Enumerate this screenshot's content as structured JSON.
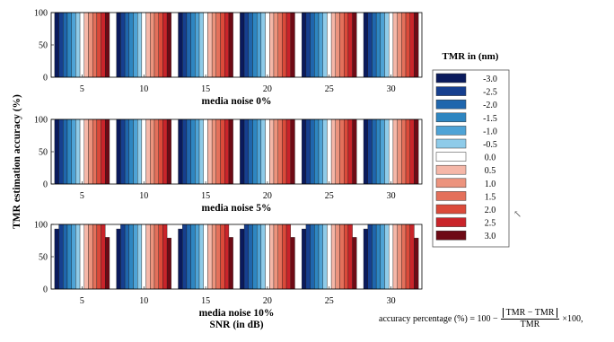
{
  "chart_data": [
    {
      "type": "bar",
      "title": "media noise 0%",
      "categories": [
        "5",
        "10",
        "15",
        "20",
        "25",
        "30"
      ],
      "series_names": [
        "-3.0",
        "-2.5",
        "-2.0",
        "-1.5",
        "-1.0",
        "-0.5",
        "0.0",
        "0.5",
        "1.0",
        "1.5",
        "2.0",
        "2.5",
        "3.0"
      ],
      "values": [
        [
          100,
          100,
          100,
          100,
          100,
          100,
          100,
          100,
          100,
          100,
          100,
          100,
          100
        ],
        [
          100,
          100,
          100,
          100,
          100,
          100,
          100,
          100,
          100,
          100,
          100,
          100,
          100
        ],
        [
          100,
          100,
          100,
          100,
          100,
          100,
          100,
          100,
          100,
          100,
          100,
          100,
          100
        ],
        [
          100,
          100,
          100,
          100,
          100,
          100,
          100,
          100,
          100,
          100,
          100,
          100,
          100
        ],
        [
          100,
          100,
          100,
          100,
          100,
          100,
          100,
          100,
          100,
          100,
          100,
          100,
          100
        ],
        [
          100,
          100,
          100,
          100,
          100,
          100,
          100,
          100,
          100,
          100,
          100,
          100,
          100
        ]
      ],
      "ylim": [
        0,
        100
      ],
      "yticks": [
        "0",
        "50",
        "100"
      ]
    },
    {
      "type": "bar",
      "title": "media noise 5%",
      "categories": [
        "5",
        "10",
        "15",
        "20",
        "25",
        "30"
      ],
      "series_names": [
        "-3.0",
        "-2.5",
        "-2.0",
        "-1.5",
        "-1.0",
        "-0.5",
        "0.0",
        "0.5",
        "1.0",
        "1.5",
        "2.0",
        "2.5",
        "3.0"
      ],
      "values": [
        [
          100,
          100,
          100,
          100,
          100,
          100,
          100,
          100,
          100,
          100,
          100,
          100,
          100
        ],
        [
          100,
          100,
          100,
          100,
          100,
          100,
          100,
          100,
          100,
          100,
          100,
          100,
          100
        ],
        [
          100,
          100,
          100,
          100,
          100,
          100,
          100,
          100,
          100,
          100,
          100,
          100,
          100
        ],
        [
          100,
          100,
          100,
          100,
          100,
          100,
          100,
          100,
          100,
          100,
          100,
          100,
          100
        ],
        [
          100,
          100,
          100,
          100,
          100,
          100,
          100,
          100,
          100,
          100,
          100,
          100,
          100
        ],
        [
          100,
          100,
          100,
          100,
          100,
          100,
          100,
          100,
          100,
          100,
          100,
          100,
          100
        ]
      ],
      "ylim": [
        0,
        100
      ],
      "yticks": [
        "0",
        "50",
        "100"
      ]
    },
    {
      "type": "bar",
      "title": "media noise 10%",
      "xlabel": "SNR (in dB)",
      "categories": [
        "5",
        "10",
        "15",
        "20",
        "25",
        "30"
      ],
      "series_names": [
        "-3.0",
        "-2.5",
        "-2.0",
        "-1.5",
        "-1.0",
        "-0.5",
        "0.0",
        "0.5",
        "1.0",
        "1.5",
        "2.0",
        "2.5",
        "3.0"
      ],
      "values": [
        [
          93,
          100,
          100,
          100,
          100,
          100,
          100,
          100,
          100,
          100,
          100,
          100,
          80
        ],
        [
          93,
          100,
          100,
          100,
          100,
          100,
          100,
          100,
          100,
          100,
          100,
          100,
          79
        ],
        [
          93,
          100,
          100,
          100,
          100,
          100,
          100,
          100,
          100,
          100,
          100,
          100,
          80
        ],
        [
          93,
          100,
          100,
          100,
          100,
          100,
          100,
          100,
          100,
          100,
          100,
          100,
          80
        ],
        [
          93,
          100,
          100,
          100,
          100,
          100,
          100,
          100,
          100,
          100,
          100,
          100,
          80
        ],
        [
          93,
          100,
          100,
          100,
          100,
          100,
          100,
          100,
          100,
          100,
          100,
          100,
          79
        ]
      ],
      "ylim": [
        0,
        100
      ],
      "yticks": [
        "0",
        "50",
        "100"
      ]
    }
  ],
  "ylabel": "TMR estimation accuracy (%)",
  "legend": {
    "title": "TMR in (nm)",
    "placement": "right",
    "entries": [
      "-3.0",
      "-2.5",
      "-2.0",
      "-1.5",
      "-1.0",
      "-0.5",
      "0.0",
      "0.5",
      "1.0",
      "1.5",
      "2.0",
      "2.5",
      "3.0"
    ],
    "colors": [
      "#0a1a5c",
      "#163f8f",
      "#1f66ad",
      "#2e86c1",
      "#4ea3d6",
      "#8ecbe9",
      "#ffffff",
      "#f5b7a8",
      "#ec937d",
      "#e4705b",
      "#db4a3a",
      "#c9242a",
      "#6e0a15"
    ]
  },
  "formula": {
    "lhs": "accuracy percentage (%) = 100 −",
    "numerator": "TMR − TMR",
    "denominator": "TMR",
    "rhs": "×100,"
  },
  "cursor_glyph": "↖"
}
